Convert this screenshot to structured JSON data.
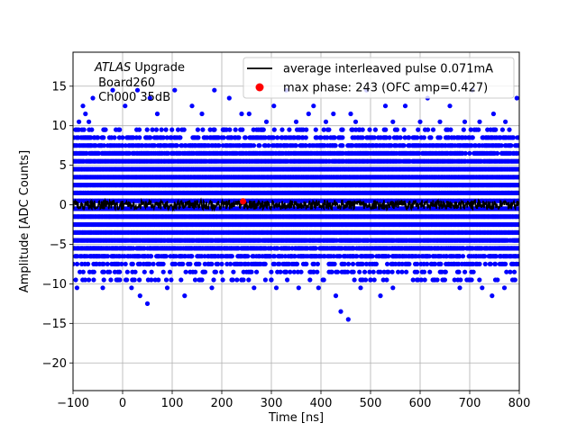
{
  "chart_data": {
    "type": "scatter",
    "xlabel": "Time [ns]",
    "ylabel": "Amplitude [ADC Counts]",
    "xlim": [
      -100,
      800
    ],
    "ylim": [
      -23.5,
      19.3
    ],
    "xticks": [
      -100,
      0,
      100,
      200,
      300,
      400,
      500,
      600,
      700,
      800
    ],
    "yticks": [
      -20,
      -15,
      -10,
      -5,
      0,
      5,
      10,
      15
    ],
    "grid": true,
    "legend_position": "top-right",
    "annotation": {
      "line1_italic": "ATLAS",
      "line1_rest": " Upgrade",
      "line2": " Board260",
      "line3": " Ch000 35dB"
    },
    "series": [
      {
        "name": "average interleaved pulse 0.071mA",
        "kind": "line",
        "color": "#000000",
        "x_range": [
          -100,
          800
        ],
        "level": 0.0,
        "noise_amplitude": 0.6
      },
      {
        "name": "max phase: 243 (OFC amp=0.427)",
        "kind": "marker",
        "color": "#ff0000",
        "x": 243,
        "y": 0.427
      },
      {
        "name": "",
        "kind": "scatter",
        "color": "#0000ff",
        "x_range": [
          -100,
          800
        ],
        "band_y": [
          -9.5,
          -8.5,
          -7.5,
          -6.5,
          -5.5,
          -4.5,
          -3.5,
          -2.5,
          -1.5,
          -0.5,
          0.5,
          1.5,
          2.5,
          3.5,
          4.5,
          5.5,
          6.5,
          7.5,
          8.5,
          9.5
        ],
        "band_density": [
          0.12,
          0.22,
          0.4,
          0.6,
          0.8,
          0.95,
          1,
          1,
          1,
          1,
          1,
          1,
          1,
          1,
          1,
          0.95,
          0.8,
          0.6,
          0.4,
          0.2
        ],
        "outliers": [
          {
            "x": -95,
            "y": 9.5
          },
          {
            "x": -88,
            "y": 10.5
          },
          {
            "x": -80,
            "y": 12.5
          },
          {
            "x": -75,
            "y": 11.5
          },
          {
            "x": -68,
            "y": 10.5
          },
          {
            "x": -60,
            "y": 13.5
          },
          {
            "x": -20,
            "y": 14.5
          },
          {
            "x": 30,
            "y": 14.5
          },
          {
            "x": 55,
            "y": 13.5
          },
          {
            "x": 105,
            "y": 14.5
          },
          {
            "x": 140,
            "y": 12.5
          },
          {
            "x": 185,
            "y": 14.5
          },
          {
            "x": 215,
            "y": 13.5
          },
          {
            "x": 255,
            "y": 11.5
          },
          {
            "x": 305,
            "y": 12.5
          },
          {
            "x": 330,
            "y": 14.5
          },
          {
            "x": 375,
            "y": 11.5
          },
          {
            "x": 385,
            "y": 12.5
          },
          {
            "x": 425,
            "y": 11.5
          },
          {
            "x": 460,
            "y": 11.5
          },
          {
            "x": 492,
            "y": 14.5
          },
          {
            "x": 530,
            "y": 12.5
          },
          {
            "x": 570,
            "y": 12.5
          },
          {
            "x": 615,
            "y": 13.5
          },
          {
            "x": 660,
            "y": 12.5
          },
          {
            "x": 705,
            "y": 14.5
          },
          {
            "x": 748,
            "y": 11.5
          },
          {
            "x": 772,
            "y": 10.5
          },
          {
            "x": 795,
            "y": 13.5
          },
          {
            "x": 5,
            "y": 12.5
          },
          {
            "x": 70,
            "y": 11.5
          },
          {
            "x": 160,
            "y": 11.5
          },
          {
            "x": 240,
            "y": 11.5
          },
          {
            "x": 290,
            "y": 10.5
          },
          {
            "x": 350,
            "y": 10.5
          },
          {
            "x": 410,
            "y": 10.5
          },
          {
            "x": 470,
            "y": 10.5
          },
          {
            "x": 545,
            "y": 10.5
          },
          {
            "x": 600,
            "y": 10.5
          },
          {
            "x": 640,
            "y": 10.5
          },
          {
            "x": 690,
            "y": 10.5
          },
          {
            "x": 720,
            "y": 10.5
          },
          {
            "x": -92,
            "y": -10.5
          },
          {
            "x": -40,
            "y": -10.5
          },
          {
            "x": -10,
            "y": -9.5
          },
          {
            "x": 18,
            "y": -10.5
          },
          {
            "x": 35,
            "y": -11.5
          },
          {
            "x": 50,
            "y": -12.5
          },
          {
            "x": 90,
            "y": -10.5
          },
          {
            "x": 125,
            "y": -11.5
          },
          {
            "x": 160,
            "y": -9.5
          },
          {
            "x": 180,
            "y": -10.5
          },
          {
            "x": 240,
            "y": -9.5
          },
          {
            "x": 265,
            "y": -10.5
          },
          {
            "x": 300,
            "y": -9.5
          },
          {
            "x": 355,
            "y": -10.5
          },
          {
            "x": 395,
            "y": -10.5
          },
          {
            "x": 430,
            "y": -11.5
          },
          {
            "x": 440,
            "y": -13.5
          },
          {
            "x": 455,
            "y": -14.5
          },
          {
            "x": 480,
            "y": -10.5
          },
          {
            "x": 520,
            "y": -11.5
          },
          {
            "x": 545,
            "y": -10.5
          },
          {
            "x": 595,
            "y": -9.5
          },
          {
            "x": 630,
            "y": -9.5
          },
          {
            "x": 680,
            "y": -10.5
          },
          {
            "x": 725,
            "y": -10.5
          },
          {
            "x": 745,
            "y": -11.5
          },
          {
            "x": 770,
            "y": -10.5
          },
          {
            "x": 790,
            "y": -9.5
          },
          {
            "x": 310,
            "y": -10.5
          },
          {
            "x": 500,
            "y": -9.5
          }
        ]
      }
    ]
  }
}
